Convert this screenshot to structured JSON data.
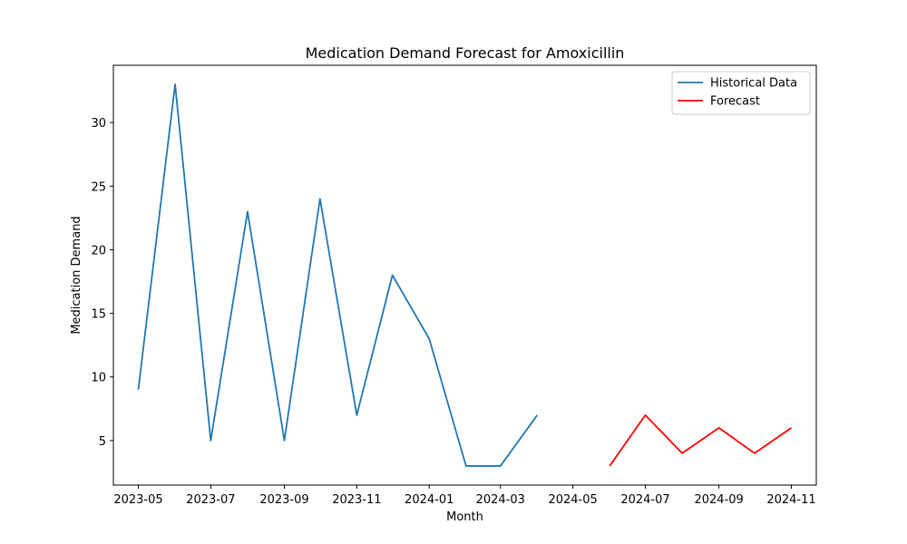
{
  "chart_data": {
    "type": "line",
    "title": "Medication Demand Forecast for Amoxicillin",
    "xlabel": "Month",
    "ylabel": "Medication Demand",
    "x_axis_type": "date",
    "xlim": [
      "2023-04-10",
      "2024-11-22"
    ],
    "ylim": [
      1.5,
      34.5
    ],
    "x_ticks": [
      "2023-05",
      "2023-07",
      "2023-09",
      "2023-11",
      "2024-01",
      "2024-03",
      "2024-05",
      "2024-07",
      "2024-09",
      "2024-11"
    ],
    "y_ticks": [
      5,
      10,
      15,
      20,
      25,
      30
    ],
    "grid": false,
    "legend_position": "top-right",
    "series": [
      {
        "name": "Historical Data",
        "color": "#1f77b4",
        "x": [
          "2023-05-01",
          "2023-06-01",
          "2023-07-01",
          "2023-08-01",
          "2023-09-01",
          "2023-10-01",
          "2023-11-01",
          "2023-12-01",
          "2024-01-01",
          "2024-02-01",
          "2024-03-01",
          "2024-04-01"
        ],
        "values": [
          9,
          33,
          5,
          23,
          5,
          24,
          7,
          18,
          13,
          3,
          3,
          7
        ]
      },
      {
        "name": "Forecast",
        "color": "#ff0000",
        "x": [
          "2024-06-01",
          "2024-07-01",
          "2024-08-01",
          "2024-09-01",
          "2024-10-01",
          "2024-11-01"
        ],
        "values": [
          3,
          7,
          4,
          6,
          4,
          6
        ]
      }
    ]
  }
}
